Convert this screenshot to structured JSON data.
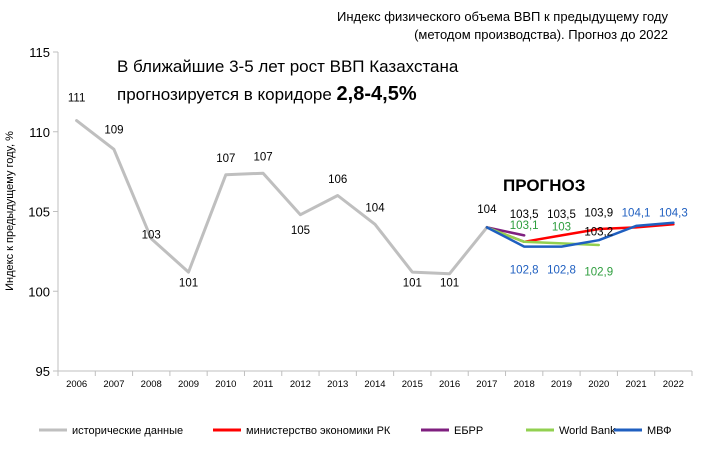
{
  "chart_data": {
    "type": "line",
    "title": [
      "Индекс физического объема ВВП к предыдущему году",
      "(методом производства). Прогноз до 2022"
    ],
    "headline": {
      "line1": "В ближайшие 3-5 лет рост ВВП Казахстана",
      "line2_prefix": "прогнозируется в коридоре ",
      "line2_bold": "2,8-4,5%"
    },
    "forecast_label": "ПРОГНОЗ",
    "ylabel": "Индекс к предыдущему году, %",
    "ylim": [
      95,
      115
    ],
    "yticks": [
      95,
      100,
      105,
      110,
      115
    ],
    "x": [
      2006,
      2007,
      2008,
      2009,
      2010,
      2011,
      2012,
      2013,
      2014,
      2015,
      2016,
      2017,
      2018,
      2019,
      2020,
      2021,
      2022
    ],
    "grid": false,
    "legend_position": "bottom",
    "series": [
      {
        "name": "исторические данные",
        "color": "#bfbfbf",
        "points": [
          [
            2006,
            110.7
          ],
          [
            2007,
            108.9
          ],
          [
            2008,
            103.3
          ],
          [
            2009,
            101.2
          ],
          [
            2010,
            107.3
          ],
          [
            2011,
            107.4
          ],
          [
            2012,
            104.8
          ],
          [
            2013,
            106.0
          ],
          [
            2014,
            104.2
          ],
          [
            2015,
            101.2
          ],
          [
            2016,
            101.1
          ],
          [
            2017,
            104.0
          ]
        ]
      },
      {
        "name": "министерство экономики РК",
        "color": "#ff0000",
        "points": [
          [
            2017,
            104.0
          ],
          [
            2018,
            103.1
          ],
          [
            2019,
            103.5
          ],
          [
            2020,
            103.9
          ],
          [
            2021,
            104.0
          ],
          [
            2022,
            104.2
          ]
        ]
      },
      {
        "name": "ЕБРР",
        "color": "#7f1f7f",
        "points": [
          [
            2017,
            104.0
          ],
          [
            2018,
            103.5
          ]
        ]
      },
      {
        "name": "World Bank",
        "color": "#92d050",
        "points": [
          [
            2017,
            104.0
          ],
          [
            2018,
            103.1
          ],
          [
            2019,
            103.0
          ],
          [
            2020,
            102.9
          ]
        ]
      },
      {
        "name": "МВФ",
        "color": "#1f5fc0",
        "points": [
          [
            2017,
            104.0
          ],
          [
            2018,
            102.8
          ],
          [
            2019,
            102.8
          ],
          [
            2020,
            103.2
          ],
          [
            2021,
            104.1
          ],
          [
            2022,
            104.3
          ]
        ]
      }
    ],
    "data_labels": [
      {
        "x": 2006,
        "text": "111",
        "color": "#000000",
        "y": 111.9
      },
      {
        "x": 2007,
        "text": "109",
        "color": "#000000",
        "y": 109.9
      },
      {
        "x": 2008,
        "text": "103",
        "color": "#000000",
        "y": 103.3
      },
      {
        "x": 2009,
        "text": "101",
        "color": "#000000",
        "y": 100.3
      },
      {
        "x": 2010,
        "text": "107",
        "color": "#000000",
        "y": 108.1
      },
      {
        "x": 2011,
        "text": "107",
        "color": "#000000",
        "y": 108.2
      },
      {
        "x": 2012,
        "text": "105",
        "color": "#000000",
        "y": 103.6
      },
      {
        "x": 2013,
        "text": "106",
        "color": "#000000",
        "y": 106.8
      },
      {
        "x": 2014,
        "text": "104",
        "color": "#000000",
        "y": 105.0
      },
      {
        "x": 2015,
        "text": "101",
        "color": "#000000",
        "y": 100.3
      },
      {
        "x": 2016,
        "text": "101",
        "color": "#000000",
        "y": 100.3
      },
      {
        "x": 2017,
        "text": "104",
        "color": "#000000",
        "y": 104.9
      },
      {
        "x": 2018,
        "text": "103,5",
        "color": "#000000",
        "y": 104.6
      },
      {
        "x": 2018,
        "text": "103,1",
        "color": "#2e9e3e",
        "y": 103.9
      },
      {
        "x": 2018,
        "text": "102,8",
        "color": "#1f5fc0",
        "y": 101.1
      },
      {
        "x": 2019,
        "text": "103,5",
        "color": "#000000",
        "y": 104.6
      },
      {
        "x": 2019,
        "text": "103",
        "color": "#2e9e3e",
        "y": 103.8
      },
      {
        "x": 2019,
        "text": "102,8",
        "color": "#1f5fc0",
        "y": 101.1
      },
      {
        "x": 2020,
        "text": "103,9",
        "color": "#000000",
        "y": 104.7
      },
      {
        "x": 2020,
        "text": "103,2",
        "color": "#000000",
        "y": 103.5
      },
      {
        "x": 2020,
        "text": "102,9",
        "color": "#2e9e3e",
        "y": 101.0
      },
      {
        "x": 2021,
        "text": "104,1",
        "color": "#1f5fc0",
        "y": 104.7
      },
      {
        "x": 2022,
        "text": "104,3",
        "color": "#1f5fc0",
        "y": 104.7
      }
    ]
  }
}
